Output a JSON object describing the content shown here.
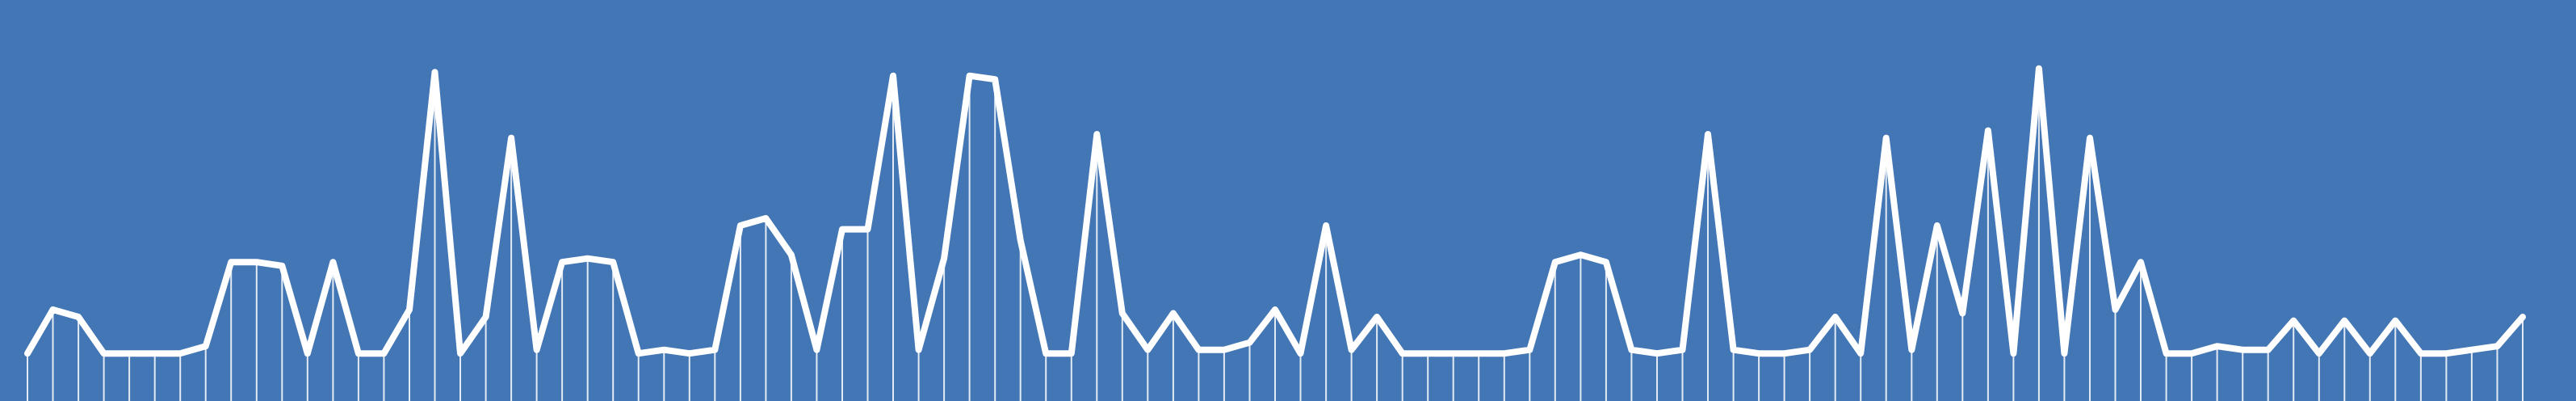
{
  "chart_data": {
    "type": "line",
    "background_color": "#4276b4",
    "line_color": "#ffffff",
    "grid": false,
    "legend": "none",
    "axes_visible": false,
    "ylim": [
      0,
      100
    ],
    "values": [
      13,
      25,
      23,
      13,
      13,
      13,
      13,
      15,
      38,
      38,
      37,
      13,
      38,
      13,
      13,
      25,
      90,
      13,
      23,
      72,
      14,
      38,
      39,
      38,
      13,
      14,
      13,
      14,
      48,
      50,
      40,
      14,
      47,
      47,
      89,
      14,
      39,
      89,
      88,
      44,
      13,
      13,
      73,
      24,
      14,
      24,
      14,
      14,
      16,
      25,
      13,
      48,
      14,
      23,
      13,
      13,
      13,
      13,
      13,
      14,
      38,
      40,
      38,
      14,
      13,
      14,
      73,
      14,
      13,
      13,
      14,
      23,
      13,
      72,
      14,
      48,
      24,
      74,
      13,
      91,
      13,
      72,
      25,
      38,
      13,
      13,
      15,
      14,
      14,
      22,
      13,
      22,
      13,
      22,
      13,
      13,
      14,
      15,
      23
    ]
  }
}
